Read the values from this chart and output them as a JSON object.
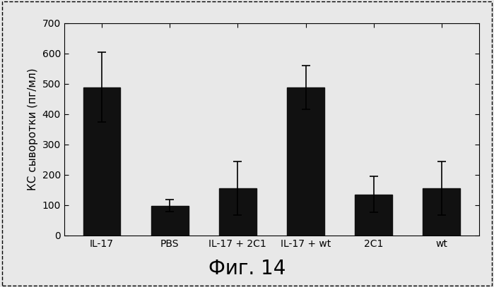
{
  "categories": [
    "IL-17",
    "PBS",
    "IL-17 + 2C1",
    "IL-17 + wt",
    "2C1",
    "wt"
  ],
  "values": [
    488,
    98,
    155,
    488,
    135,
    155
  ],
  "errors": [
    115,
    20,
    88,
    72,
    60,
    88
  ],
  "bar_color": "#111111",
  "ylabel": "КС сыворотки (пг/мл)",
  "ylim": [
    0,
    700
  ],
  "yticks": [
    0,
    100,
    200,
    300,
    400,
    500,
    600,
    700
  ],
  "caption": "Фиг. 14",
  "caption_fontsize": 20,
  "ylabel_fontsize": 11,
  "tick_fontsize": 10,
  "xlabel_fontsize": 10,
  "background_color": "#e8e8e8",
  "plot_bg_color": "#e8e8e8",
  "bar_width": 0.55,
  "capsize": 4
}
